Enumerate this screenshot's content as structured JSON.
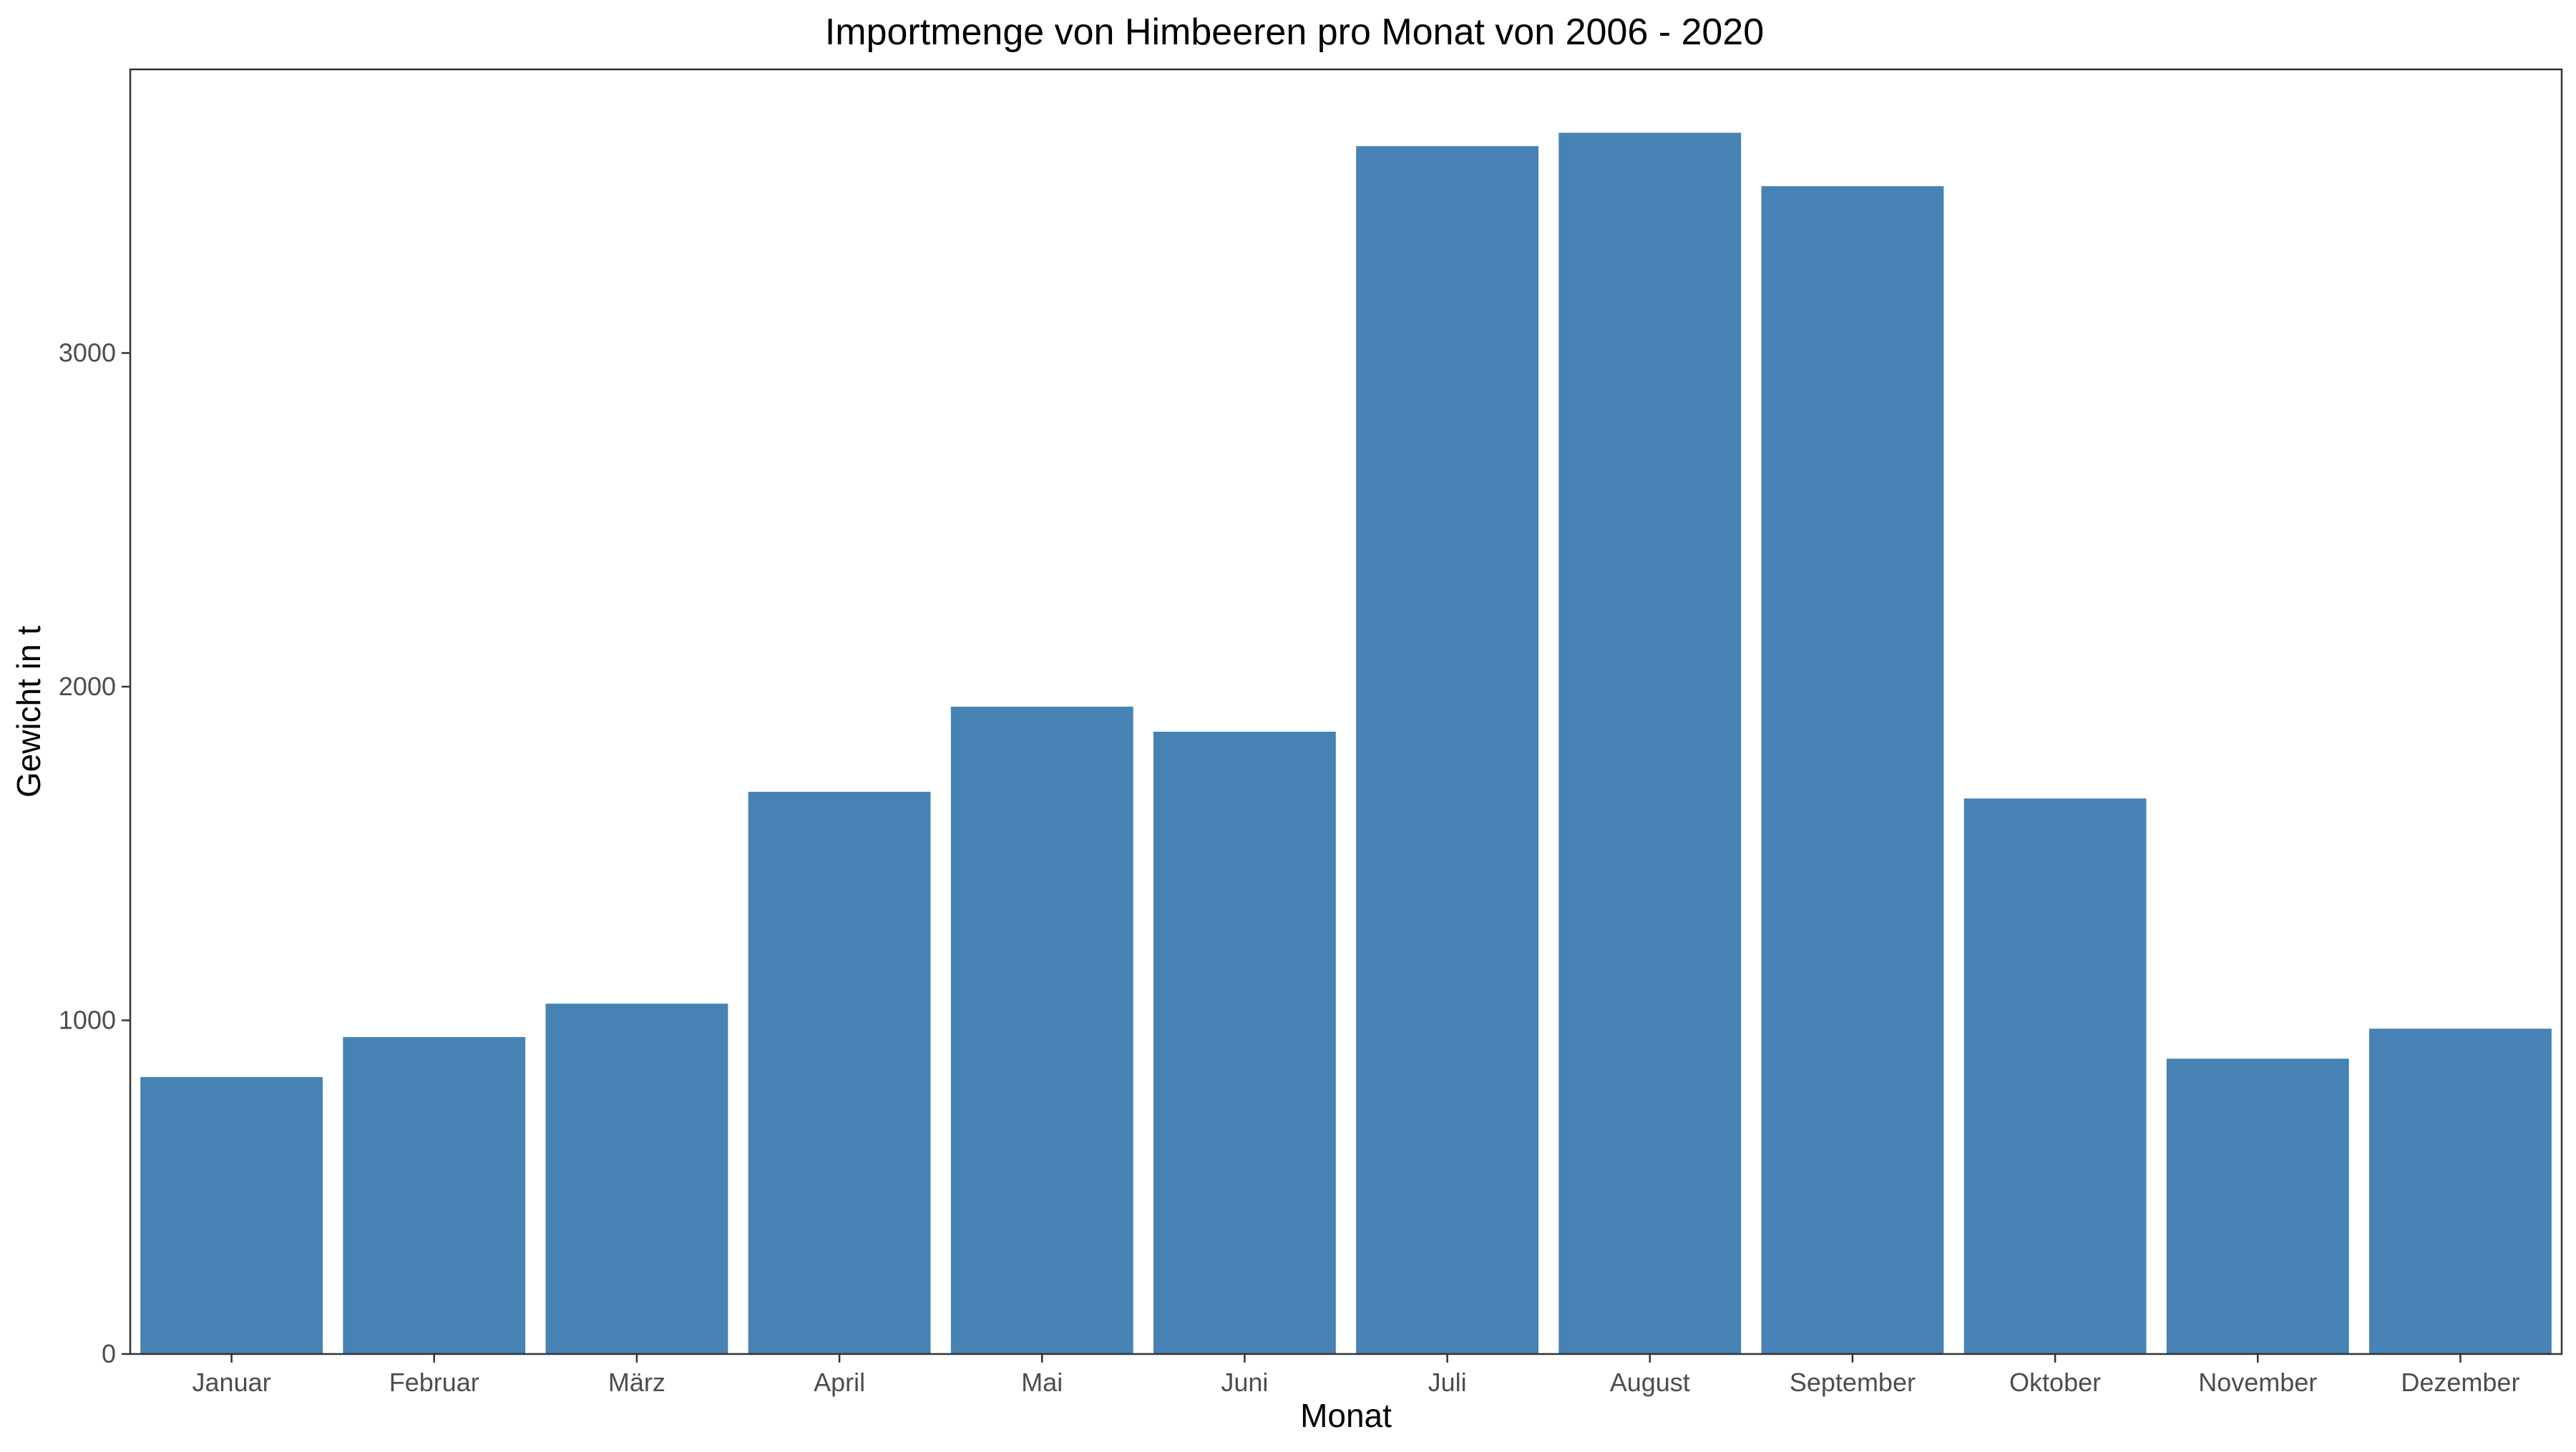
{
  "chart_data": {
    "type": "bar",
    "title": "Importmenge von Himbeeren pro Monat von 2006 - 2020",
    "xlabel": "Monat",
    "ylabel": "Gewicht in t",
    "categories": [
      "Januar",
      "Februar",
      "März",
      "April",
      "Mai",
      "Juni",
      "Juli",
      "August",
      "September",
      "Oktober",
      "November",
      "Dezember"
    ],
    "values": [
      830,
      950,
      1050,
      1685,
      1940,
      1865,
      3620,
      3660,
      3500,
      1665,
      885,
      975
    ],
    "ylim": [
      0,
      3850
    ],
    "yticks": [
      0,
      1000,
      2000,
      3000
    ],
    "ytick_labels": [
      "0",
      "1000",
      "2000",
      "3000"
    ],
    "bar_color": "#4682b4",
    "grid": false,
    "legend": "none"
  }
}
